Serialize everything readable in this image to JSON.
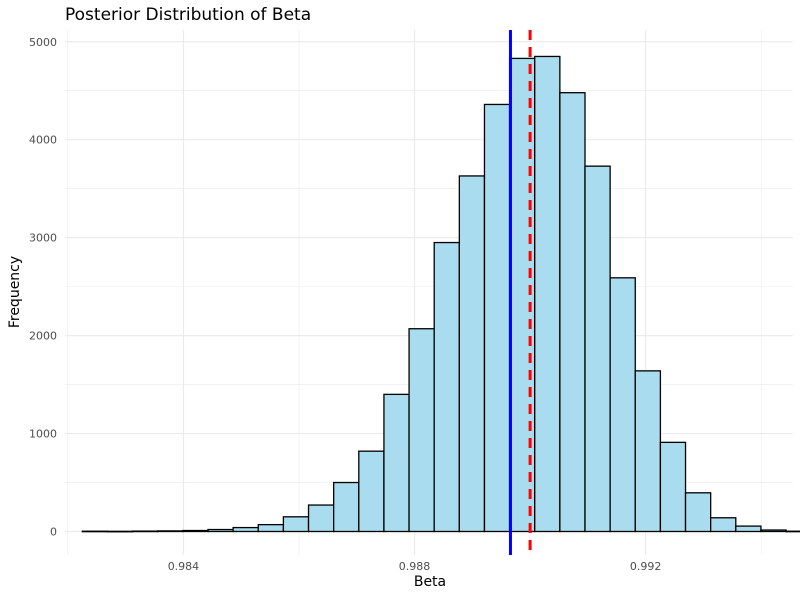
{
  "chart_data": {
    "type": "bar",
    "title": "Posterior Distribution of Beta",
    "xlabel": "Beta",
    "ylabel": "Frequency",
    "bins_start": 0.98225,
    "bin_width": 0.000435,
    "counts": [
      3,
      2,
      4,
      6,
      10,
      20,
      40,
      70,
      150,
      270,
      500,
      820,
      1400,
      2070,
      2950,
      3630,
      4360,
      4830,
      4850,
      4480,
      3730,
      2590,
      1640,
      910,
      395,
      140,
      55,
      15,
      3,
      1
    ],
    "xlim": [
      0.98195,
      0.99455
    ],
    "ylim": [
      -240,
      5120
    ],
    "x_ticks": [
      0.984,
      0.988,
      0.992
    ],
    "x_tick_labels": [
      "0.984",
      "0.988",
      "0.992"
    ],
    "y_ticks": [
      0,
      1000,
      2000,
      3000,
      4000,
      5000
    ],
    "y_tick_labels": [
      "0",
      "1000",
      "2000",
      "3000",
      "4000",
      "5000"
    ],
    "vlines": [
      {
        "x": 0.98966,
        "style": "solid",
        "color": "#0000ff"
      },
      {
        "x": 0.99,
        "style": "dashed",
        "color": "#ff0000"
      }
    ],
    "colors": {
      "bar_fill": "#a8dcee",
      "bar_stroke": "#000000",
      "grid": "#ebebeb",
      "text": "#4d4d4d"
    },
    "grid": true
  }
}
